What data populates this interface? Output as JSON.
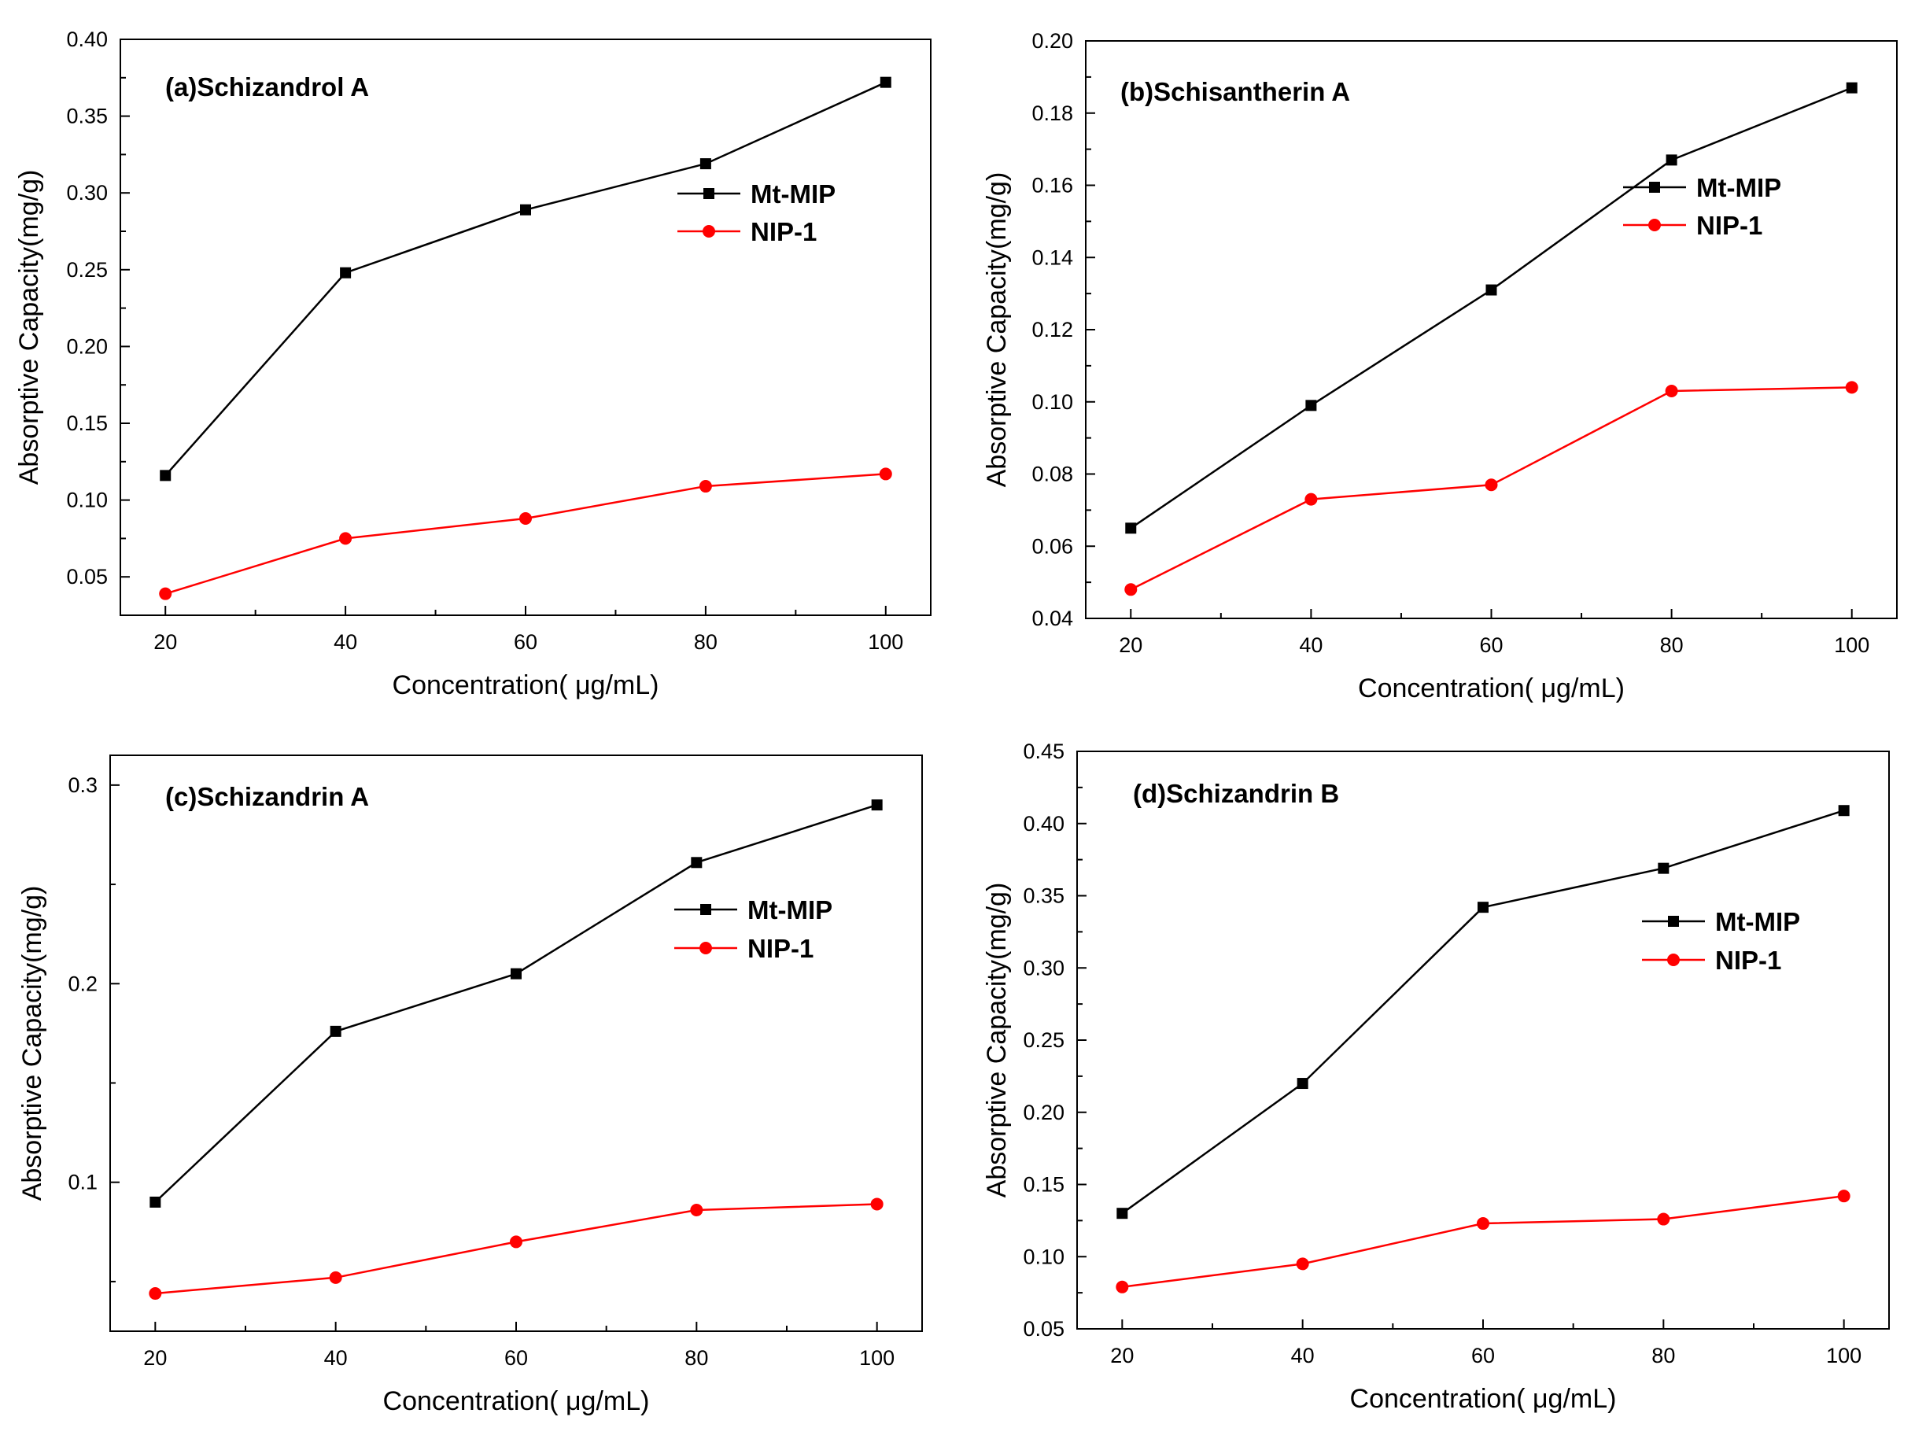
{
  "chart_data": [
    {
      "type": "line",
      "title": "(a)Schizandrol A",
      "xlabel": "Concentration( μg/mL)",
      "ylabel": "Absorptive Capacity(mg/g)",
      "x": [
        20,
        40,
        60,
        80,
        100
      ],
      "xlim": [
        15,
        105
      ],
      "ylim": [
        0.025,
        0.4
      ],
      "xticks": [
        20,
        40,
        60,
        80,
        100
      ],
      "xtick_labels": [
        "20",
        "40",
        "60",
        "80",
        "100"
      ],
      "yticks": [
        0.05,
        0.1,
        0.15,
        0.2,
        0.25,
        0.3,
        0.35,
        0.4
      ],
      "ytick_labels": [
        "0.05",
        "0.10",
        "0.15",
        "0.20",
        "0.25",
        "0.30",
        "0.35",
        "0.40"
      ],
      "legend_position": "upper-right",
      "grid": false,
      "series": [
        {
          "name": "Mt-MIP",
          "color": "#000000",
          "marker": "square",
          "values": [
            0.116,
            0.248,
            0.289,
            0.319,
            0.372
          ]
        },
        {
          "name": "NIP-1",
          "color": "#ff0000",
          "marker": "circle",
          "values": [
            0.039,
            0.075,
            0.088,
            0.109,
            0.117
          ]
        }
      ]
    },
    {
      "type": "line",
      "title": "(b)Schisantherin A",
      "xlabel": "Concentration( μg/mL)",
      "ylabel": "Absorptive Capacity(mg/g)",
      "x": [
        20,
        40,
        60,
        80,
        100
      ],
      "xlim": [
        15,
        105
      ],
      "ylim": [
        0.04,
        0.2
      ],
      "xticks": [
        20,
        40,
        60,
        80,
        100
      ],
      "xtick_labels": [
        "20",
        "40",
        "60",
        "80",
        "100"
      ],
      "yticks": [
        0.04,
        0.06,
        0.08,
        0.1,
        0.12,
        0.14,
        0.16,
        0.18,
        0.2
      ],
      "ytick_labels": [
        "0.04",
        "0.06",
        "0.08",
        "0.10",
        "0.12",
        "0.14",
        "0.16",
        "0.18",
        "0.20"
      ],
      "legend_position": "upper-right",
      "grid": false,
      "series": [
        {
          "name": "Mt-MIP",
          "color": "#000000",
          "marker": "square",
          "values": [
            0.065,
            0.099,
            0.131,
            0.167,
            0.187
          ]
        },
        {
          "name": "NIP-1",
          "color": "#ff0000",
          "marker": "circle",
          "values": [
            0.048,
            0.073,
            0.077,
            0.103,
            0.104
          ]
        }
      ]
    },
    {
      "type": "line",
      "title": "(c)Schizandrin A",
      "xlabel": "Concentration( μg/mL)",
      "ylabel": "Absorptive Capacity(mg/g)",
      "x": [
        20,
        40,
        60,
        80,
        100
      ],
      "xlim": [
        15,
        105
      ],
      "ylim": [
        0.025,
        0.315
      ],
      "xticks": [
        20,
        40,
        60,
        80,
        100
      ],
      "xtick_labels": [
        "20",
        "40",
        "60",
        "80",
        "100"
      ],
      "yticks": [
        0.1,
        0.2,
        0.3
      ],
      "ytick_labels": [
        "0.1",
        "0.2",
        "0.3"
      ],
      "legend_position": "upper-right",
      "grid": false,
      "series": [
        {
          "name": "Mt-MIP",
          "color": "#000000",
          "marker": "square",
          "values": [
            0.09,
            0.176,
            0.205,
            0.261,
            0.29
          ]
        },
        {
          "name": "NIP-1",
          "color": "#ff0000",
          "marker": "circle",
          "values": [
            0.044,
            0.052,
            0.07,
            0.086,
            0.089
          ]
        }
      ]
    },
    {
      "type": "line",
      "title": "(d)Schizandrin B",
      "xlabel": "Concentration( μg/mL)",
      "ylabel": "Absorptive Capacity(mg/g)",
      "x": [
        20,
        40,
        60,
        80,
        100
      ],
      "xlim": [
        15,
        105
      ],
      "ylim": [
        0.05,
        0.45
      ],
      "xticks": [
        20,
        40,
        60,
        80,
        100
      ],
      "xtick_labels": [
        "20",
        "40",
        "60",
        "80",
        "100"
      ],
      "yticks": [
        0.05,
        0.1,
        0.15,
        0.2,
        0.25,
        0.3,
        0.35,
        0.4,
        0.45
      ],
      "ytick_labels": [
        "0.05",
        "0.10",
        "0.15",
        "0.20",
        "0.25",
        "0.30",
        "0.35",
        "0.40",
        "0.45"
      ],
      "legend_position": "upper-right",
      "grid": false,
      "series": [
        {
          "name": "Mt-MIP",
          "color": "#000000",
          "marker": "square",
          "values": [
            0.13,
            0.22,
            0.342,
            0.369,
            0.409
          ]
        },
        {
          "name": "NIP-1",
          "color": "#ff0000",
          "marker": "circle",
          "values": [
            0.079,
            0.095,
            0.123,
            0.126,
            0.142
          ]
        }
      ]
    }
  ]
}
